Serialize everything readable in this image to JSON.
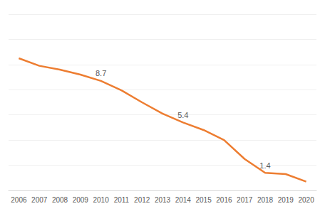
{
  "chart_data": {
    "type": "line",
    "categories": [
      "2006",
      "2007",
      "2008",
      "2009",
      "2010",
      "2011",
      "2012",
      "2013",
      "2014",
      "2015",
      "2016",
      "2017",
      "2018",
      "2019",
      "2020"
    ],
    "values": [
      10.5,
      9.9,
      9.6,
      9.2,
      8.7,
      7.95,
      7.0,
      6.1,
      5.4,
      4.8,
      4.0,
      2.5,
      1.4,
      1.3,
      0.7
    ],
    "color": "#ed7d31",
    "ylim": [
      0,
      14
    ],
    "yticks": [
      0,
      2,
      4,
      6,
      8,
      10,
      12,
      14
    ],
    "grid": true,
    "tick_labels": "x",
    "annotations": [
      {
        "x": "2010",
        "text": "8.7"
      },
      {
        "x": "2014",
        "text": "5.4"
      },
      {
        "x": "2018",
        "text": "1.4"
      }
    ]
  }
}
